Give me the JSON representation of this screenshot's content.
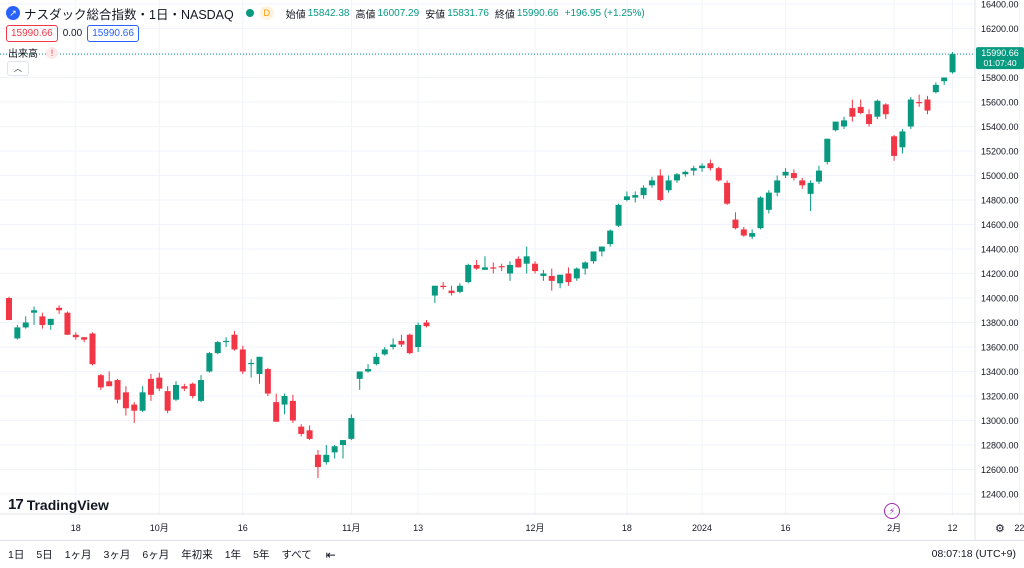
{
  "header": {
    "title": "ナスダック総合指数・1日・NASDAQ",
    "status_badge": "D",
    "open_label": "始値",
    "open_value": "15842.38",
    "high_label": "高値",
    "high_value": "16007.29",
    "low_label": "安値",
    "low_value": "15831.76",
    "close_label": "終値",
    "close_value": "15990.66",
    "change_value": "+196.95 (+1.25%)"
  },
  "price_boxes": {
    "sell": "15990.66",
    "spread": "0.00",
    "buy": "15990.66"
  },
  "volume_label": "出来高",
  "volume_warning": "!",
  "brand": {
    "mark": "17",
    "name": "TradingView"
  },
  "toolbar": {
    "timeframes": [
      "1日",
      "5日",
      "1ヶ月",
      "3ヶ月",
      "6ヶ月",
      "年初来",
      "1年",
      "5年",
      "すべて"
    ],
    "clock": "08:07:18 (UTC+9)"
  },
  "colors": {
    "up": "#089981",
    "down": "#f23645",
    "grid": "#f0f3fa",
    "accent": "#2962ff"
  },
  "chart_data": {
    "type": "candlestick",
    "symbol": "ナスダック総合指数",
    "interval": "1日",
    "ylim": [
      12400,
      16400
    ],
    "y_ticks": [
      12400,
      12600,
      12800,
      13000,
      13200,
      13400,
      13600,
      13800,
      14000,
      14200,
      14400,
      14600,
      14800,
      15000,
      15200,
      15400,
      15600,
      15800,
      16000,
      16200,
      16400
    ],
    "x_tick_labels": [
      {
        "label": "18",
        "index": 8
      },
      {
        "label": "10月",
        "index": 18
      },
      {
        "label": "16",
        "index": 28
      },
      {
        "label": "11月",
        "index": 41
      },
      {
        "label": "13",
        "index": 49
      },
      {
        "label": "12月",
        "index": 63
      },
      {
        "label": "18",
        "index": 74
      },
      {
        "label": "2024",
        "index": 83
      },
      {
        "label": "16",
        "index": 93
      },
      {
        "label": "2月",
        "index": 106
      },
      {
        "label": "12",
        "index": 113
      },
      {
        "label": "22",
        "index": 121
      }
    ],
    "last_price": "15990.66",
    "countdown": "01:07:40",
    "candles": [
      {
        "o": 14000,
        "h": 14010,
        "l": 13820,
        "c": 13820
      },
      {
        "o": 13670,
        "h": 13780,
        "l": 13660,
        "c": 13760
      },
      {
        "o": 13760,
        "h": 13850,
        "l": 13750,
        "c": 13800
      },
      {
        "o": 13880,
        "h": 13930,
        "l": 13780,
        "c": 13900
      },
      {
        "o": 13850,
        "h": 13880,
        "l": 13750,
        "c": 13780
      },
      {
        "o": 13780,
        "h": 13830,
        "l": 13740,
        "c": 13830
      },
      {
        "o": 13920,
        "h": 13940,
        "l": 13870,
        "c": 13900
      },
      {
        "o": 13880,
        "h": 13890,
        "l": 13700,
        "c": 13700
      },
      {
        "o": 13700,
        "h": 13720,
        "l": 13660,
        "c": 13680
      },
      {
        "o": 13680,
        "h": 13680,
        "l": 13640,
        "c": 13660
      },
      {
        "o": 13710,
        "h": 13720,
        "l": 13450,
        "c": 13460
      },
      {
        "o": 13370,
        "h": 13380,
        "l": 13250,
        "c": 13270
      },
      {
        "o": 13320,
        "h": 13400,
        "l": 13280,
        "c": 13280
      },
      {
        "o": 13330,
        "h": 13340,
        "l": 13140,
        "c": 13170
      },
      {
        "o": 13230,
        "h": 13280,
        "l": 13040,
        "c": 13100
      },
      {
        "o": 13130,
        "h": 13150,
        "l": 12980,
        "c": 13080
      },
      {
        "o": 13080,
        "h": 13280,
        "l": 13070,
        "c": 13230
      },
      {
        "o": 13340,
        "h": 13380,
        "l": 13160,
        "c": 13210
      },
      {
        "o": 13350,
        "h": 13390,
        "l": 13240,
        "c": 13260
      },
      {
        "o": 13240,
        "h": 13280,
        "l": 13060,
        "c": 13080
      },
      {
        "o": 13170,
        "h": 13320,
        "l": 13160,
        "c": 13290
      },
      {
        "o": 13280,
        "h": 13300,
        "l": 13240,
        "c": 13260
      },
      {
        "o": 13300,
        "h": 13310,
        "l": 13180,
        "c": 13200
      },
      {
        "o": 13160,
        "h": 13370,
        "l": 13150,
        "c": 13330
      },
      {
        "o": 13400,
        "h": 13560,
        "l": 13390,
        "c": 13550
      },
      {
        "o": 13550,
        "h": 13650,
        "l": 13540,
        "c": 13640
      },
      {
        "o": 13640,
        "h": 13680,
        "l": 13600,
        "c": 13650
      },
      {
        "o": 13700,
        "h": 13730,
        "l": 13570,
        "c": 13580
      },
      {
        "o": 13580,
        "h": 13610,
        "l": 13380,
        "c": 13400
      },
      {
        "o": 13460,
        "h": 13500,
        "l": 13350,
        "c": 13470
      },
      {
        "o": 13380,
        "h": 13520,
        "l": 13300,
        "c": 13520
      },
      {
        "o": 13420,
        "h": 13430,
        "l": 13200,
        "c": 13220
      },
      {
        "o": 13150,
        "h": 13220,
        "l": 12990,
        "c": 12990
      },
      {
        "o": 13130,
        "h": 13220,
        "l": 13050,
        "c": 13200
      },
      {
        "o": 13160,
        "h": 13210,
        "l": 12980,
        "c": 13000
      },
      {
        "o": 12950,
        "h": 12970,
        "l": 12870,
        "c": 12890
      },
      {
        "o": 12920,
        "h": 12960,
        "l": 12840,
        "c": 12850
      },
      {
        "o": 12720,
        "h": 12760,
        "l": 12530,
        "c": 12620
      },
      {
        "o": 12660,
        "h": 12800,
        "l": 12640,
        "c": 12720
      },
      {
        "o": 12740,
        "h": 12800,
        "l": 12690,
        "c": 12790
      },
      {
        "o": 12800,
        "h": 12840,
        "l": 12690,
        "c": 12840
      },
      {
        "o": 12850,
        "h": 13050,
        "l": 12840,
        "c": 13020
      },
      {
        "o": 13340,
        "h": 13400,
        "l": 13250,
        "c": 13400
      },
      {
        "o": 13400,
        "h": 13460,
        "l": 13390,
        "c": 13420
      },
      {
        "o": 13460,
        "h": 13550,
        "l": 13450,
        "c": 13520
      },
      {
        "o": 13540,
        "h": 13600,
        "l": 13530,
        "c": 13580
      },
      {
        "o": 13600,
        "h": 13670,
        "l": 13580,
        "c": 13620
      },
      {
        "o": 13650,
        "h": 13700,
        "l": 13600,
        "c": 13620
      },
      {
        "o": 13700,
        "h": 13710,
        "l": 13540,
        "c": 13550
      },
      {
        "o": 13600,
        "h": 13800,
        "l": 13560,
        "c": 13780
      },
      {
        "o": 13800,
        "h": 13820,
        "l": 13760,
        "c": 13770
      },
      {
        "o": 14020,
        "h": 14100,
        "l": 13960,
        "c": 14100
      },
      {
        "o": 14100,
        "h": 14130,
        "l": 14070,
        "c": 14090
      },
      {
        "o": 14060,
        "h": 14100,
        "l": 14020,
        "c": 14040
      },
      {
        "o": 14050,
        "h": 14120,
        "l": 14040,
        "c": 14100
      },
      {
        "o": 14130,
        "h": 14280,
        "l": 14120,
        "c": 14270
      },
      {
        "o": 14270,
        "h": 14310,
        "l": 14230,
        "c": 14240
      },
      {
        "o": 14230,
        "h": 14340,
        "l": 14230,
        "c": 14250
      },
      {
        "o": 14250,
        "h": 14290,
        "l": 14200,
        "c": 14240
      },
      {
        "o": 14260,
        "h": 14280,
        "l": 14220,
        "c": 14250
      },
      {
        "o": 14200,
        "h": 14300,
        "l": 14140,
        "c": 14270
      },
      {
        "o": 14320,
        "h": 14340,
        "l": 14250,
        "c": 14250
      },
      {
        "o": 14280,
        "h": 14420,
        "l": 14200,
        "c": 14340
      },
      {
        "o": 14280,
        "h": 14300,
        "l": 14200,
        "c": 14220
      },
      {
        "o": 14180,
        "h": 14230,
        "l": 14140,
        "c": 14200
      },
      {
        "o": 14180,
        "h": 14240,
        "l": 14060,
        "c": 14140
      },
      {
        "o": 14120,
        "h": 14190,
        "l": 14080,
        "c": 14190
      },
      {
        "o": 14200,
        "h": 14250,
        "l": 14100,
        "c": 14130
      },
      {
        "o": 14160,
        "h": 14250,
        "l": 14140,
        "c": 14240
      },
      {
        "o": 14240,
        "h": 14300,
        "l": 14190,
        "c": 14290
      },
      {
        "o": 14300,
        "h": 14380,
        "l": 14280,
        "c": 14380
      },
      {
        "o": 14380,
        "h": 14420,
        "l": 14340,
        "c": 14420
      },
      {
        "o": 14440,
        "h": 14560,
        "l": 14420,
        "c": 14550
      },
      {
        "o": 14590,
        "h": 14770,
        "l": 14580,
        "c": 14760
      },
      {
        "o": 14800,
        "h": 14870,
        "l": 14790,
        "c": 14830
      },
      {
        "o": 14820,
        "h": 14870,
        "l": 14780,
        "c": 14840
      },
      {
        "o": 14840,
        "h": 14920,
        "l": 14810,
        "c": 14900
      },
      {
        "o": 14920,
        "h": 14990,
        "l": 14900,
        "c": 14960
      },
      {
        "o": 15000,
        "h": 15050,
        "l": 14790,
        "c": 14800
      },
      {
        "o": 14880,
        "h": 15000,
        "l": 14860,
        "c": 14960
      },
      {
        "o": 14960,
        "h": 15020,
        "l": 14940,
        "c": 15010
      },
      {
        "o": 15010,
        "h": 15040,
        "l": 14990,
        "c": 15030
      },
      {
        "o": 15040,
        "h": 15080,
        "l": 15000,
        "c": 15060
      },
      {
        "o": 15060,
        "h": 15100,
        "l": 15030,
        "c": 15080
      },
      {
        "o": 15100,
        "h": 15130,
        "l": 15040,
        "c": 15060
      },
      {
        "o": 15060,
        "h": 15070,
        "l": 14950,
        "c": 14960
      },
      {
        "o": 14940,
        "h": 14960,
        "l": 14760,
        "c": 14770
      },
      {
        "o": 14640,
        "h": 14700,
        "l": 14560,
        "c": 14570
      },
      {
        "o": 14560,
        "h": 14580,
        "l": 14500,
        "c": 14510
      },
      {
        "o": 14500,
        "h": 14560,
        "l": 14480,
        "c": 14530
      },
      {
        "o": 14570,
        "h": 14830,
        "l": 14560,
        "c": 14820
      },
      {
        "o": 14720,
        "h": 14880,
        "l": 14690,
        "c": 14860
      },
      {
        "o": 14860,
        "h": 15000,
        "l": 14830,
        "c": 14960
      },
      {
        "o": 15000,
        "h": 15060,
        "l": 14980,
        "c": 15030
      },
      {
        "o": 15020,
        "h": 15050,
        "l": 14960,
        "c": 14980
      },
      {
        "o": 14960,
        "h": 14980,
        "l": 14890,
        "c": 14920
      },
      {
        "o": 14850,
        "h": 14960,
        "l": 14710,
        "c": 14940
      },
      {
        "o": 14950,
        "h": 15080,
        "l": 14930,
        "c": 15040
      },
      {
        "o": 15110,
        "h": 15300,
        "l": 15090,
        "c": 15300
      },
      {
        "o": 15370,
        "h": 15440,
        "l": 15360,
        "c": 15440
      },
      {
        "o": 15400,
        "h": 15480,
        "l": 15380,
        "c": 15450
      },
      {
        "o": 15550,
        "h": 15620,
        "l": 15440,
        "c": 15480
      },
      {
        "o": 15560,
        "h": 15620,
        "l": 15500,
        "c": 15510
      },
      {
        "o": 15500,
        "h": 15540,
        "l": 15400,
        "c": 15420
      },
      {
        "o": 15480,
        "h": 15620,
        "l": 15460,
        "c": 15610
      },
      {
        "o": 15580,
        "h": 15590,
        "l": 15460,
        "c": 15500
      },
      {
        "o": 15320,
        "h": 15330,
        "l": 15120,
        "c": 15160
      },
      {
        "o": 15230,
        "h": 15380,
        "l": 15180,
        "c": 15360
      },
      {
        "o": 15400,
        "h": 15640,
        "l": 15380,
        "c": 15620
      },
      {
        "o": 15600,
        "h": 15660,
        "l": 15560,
        "c": 15590
      },
      {
        "o": 15620,
        "h": 15650,
        "l": 15500,
        "c": 15530
      },
      {
        "o": 15680,
        "h": 15760,
        "l": 15670,
        "c": 15740
      },
      {
        "o": 15770,
        "h": 15800,
        "l": 15740,
        "c": 15800
      },
      {
        "o": 15842.38,
        "h": 16007.29,
        "l": 15831.76,
        "c": 15990.66
      }
    ]
  }
}
